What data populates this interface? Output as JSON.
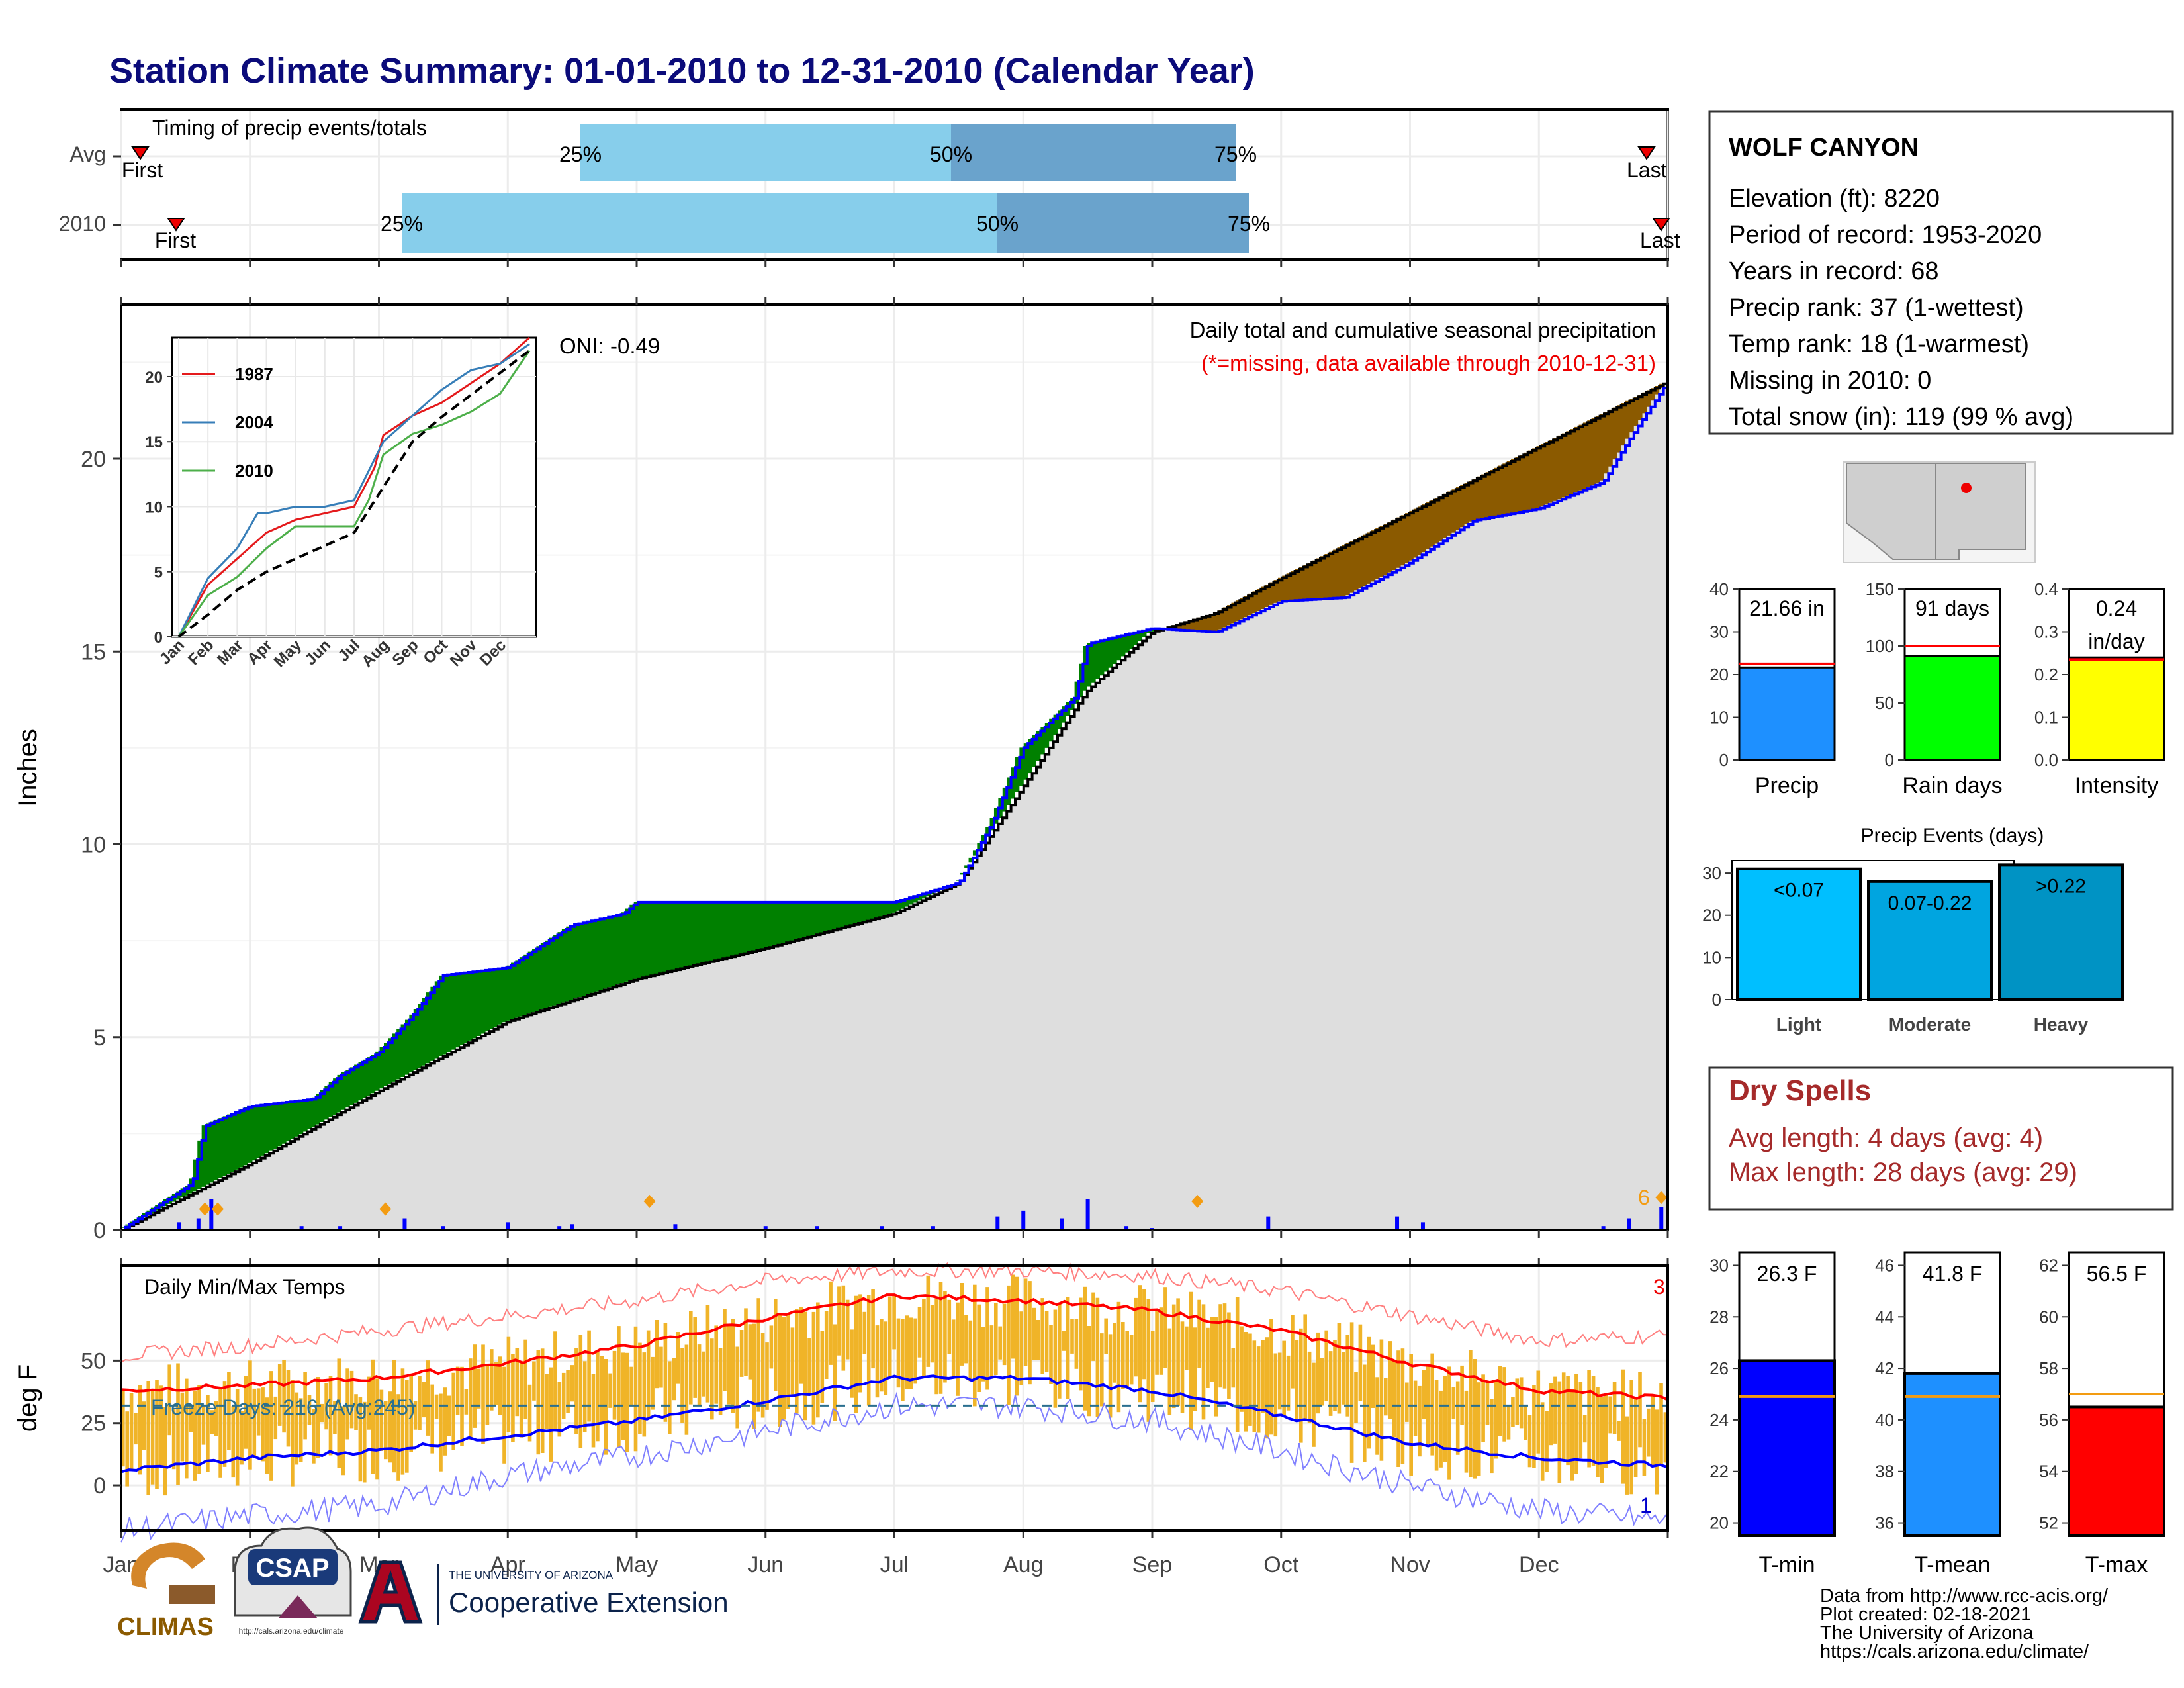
{
  "title": "Station Climate Summary: 01-01-2010 to 12-31-2010 (Calendar Year)",
  "colors": {
    "title": "#0b0b7a",
    "green_fill": "#008000",
    "brown_fill": "#8b5a00",
    "avg_fill": "#dedede",
    "blue_line": "#0000ff",
    "light_blue": "#87ceeb",
    "mid_blue": "#6aa3cc",
    "tmax": "#ff0000",
    "tmin": "#0000ff",
    "bars": "#f0b428",
    "dry_spell_text": "#a52a2a"
  },
  "timing": {
    "label": "Timing of precip events/totals",
    "rows": [
      "Avg",
      "2010"
    ],
    "avg": {
      "first_label": "First",
      "last_label": "Last",
      "p25": "25%",
      "p50": "50%",
      "p75": "75%"
    },
    "y2010": {
      "first_label": "First",
      "last_label": "Last",
      "p25": "25%",
      "p50": "50%",
      "p75": "75%"
    }
  },
  "precip_panel": {
    "ylabel": "Inches",
    "oni": "ONI: -0.49",
    "caption": "Daily total and cumulative seasonal precipitation",
    "missing_note": "(*=missing, data available through 2010-12-31)",
    "corner_count": "6",
    "yticks": [
      "0",
      "5",
      "10",
      "15",
      "20"
    ]
  },
  "inset": {
    "series": [
      {
        "name": "1987",
        "color": "#e41a1c"
      },
      {
        "name": "2004",
        "color": "#377eb8"
      },
      {
        "name": "2010",
        "color": "#4daf4a"
      }
    ],
    "yticks": [
      "0",
      "5",
      "10",
      "15",
      "20"
    ],
    "xticks": [
      "Jan",
      "Feb",
      "Mar",
      "Apr",
      "May",
      "Jun",
      "Jul",
      "Aug",
      "Sep",
      "Oct",
      "Nov",
      "Dec"
    ]
  },
  "temp_panel": {
    "ylabel": "deg F",
    "label": "Daily Min/Max Temps",
    "freeze": "Freeze Days: 216 (Avg:245)",
    "max_count": "3",
    "min_count": "1",
    "yticks": [
      "0",
      "25",
      "50"
    ]
  },
  "months": [
    "Jan",
    "Feb",
    "Mar",
    "Apr",
    "May",
    "Jun",
    "Jul",
    "Aug",
    "Sep",
    "Oct",
    "Nov",
    "Dec"
  ],
  "station": {
    "name": "WOLF CANYON",
    "lines": [
      "Elevation (ft): 8220",
      "Period of record: 1953-2020",
      "Years in record: 68",
      "Precip rank: 37 (1-wettest)",
      "Temp rank: 18 (1-warmest)",
      "Missing in 2010: 0",
      "Total snow (in): 119 (99 % avg)"
    ]
  },
  "summary_bars": [
    {
      "label": "Precip",
      "value_text": "21.66 in",
      "color": "#1e90ff",
      "yticks": [
        "0",
        "10",
        "20",
        "30",
        "40"
      ]
    },
    {
      "label": "Rain days",
      "value_text": "91 days",
      "color": "#00ff00",
      "yticks": [
        "0",
        "50",
        "100",
        "150"
      ]
    },
    {
      "label": "Intensity",
      "value_text": "0.24",
      "value_text2": "in/day",
      "color": "#ffff00",
      "yticks": [
        "0.0",
        "0.1",
        "0.2",
        "0.3",
        "0.4"
      ]
    }
  ],
  "precip_events": {
    "title": "Precip Events (days)",
    "yticks": [
      "0",
      "10",
      "20",
      "30"
    ],
    "bars": [
      {
        "label": "Light",
        "range": "<0.07",
        "color": "#00bfff"
      },
      {
        "label": "Moderate",
        "range": "0.07-0.22",
        "color": "#00a5e0"
      },
      {
        "label": "Heavy",
        "range": ">0.22",
        "color": "#0093c4"
      }
    ]
  },
  "dry_spells": {
    "title": "Dry Spells",
    "avg": "Avg length: 4 days (avg: 4)",
    "max": "Max length: 28 days (avg: 29)"
  },
  "temp_bars": [
    {
      "label": "T-min",
      "value_text": "26.3 F",
      "color": "#0000ff",
      "yticks": [
        "20",
        "22",
        "24",
        "26",
        "28",
        "30"
      ]
    },
    {
      "label": "T-mean",
      "value_text": "41.8 F",
      "color": "#1e90ff",
      "yticks": [
        "36",
        "38",
        "40",
        "42",
        "44",
        "46"
      ]
    },
    {
      "label": "T-max",
      "value_text": "56.5 F",
      "color": "#ff0000",
      "yticks": [
        "52",
        "54",
        "56",
        "58",
        "60",
        "62"
      ]
    }
  ],
  "logos": {
    "climas": "CLIMAS",
    "csap": "CSAP",
    "csap_url": "http://cals.arizona.edu/climate",
    "ua_small": "THE UNIVERSITY OF ARIZONA",
    "ua_big": "Cooperative Extension"
  },
  "credits": [
    "Data from http://www.rcc-acis.org/",
    "Plot created: 02-18-2021",
    "The University of Arizona",
    "https://cals.arizona.edu/climate/"
  ],
  "chart_data": [
    {
      "type": "area",
      "title": "Daily total and cumulative seasonal precipitation",
      "ylabel": "Inches",
      "ylim": [
        0,
        24
      ],
      "x_unit": "month of 2010",
      "cumulative_2010": [
        [
          0,
          0
        ],
        [
          0.55,
          1.2
        ],
        [
          0.65,
          2.7
        ],
        [
          1.0,
          3.2
        ],
        [
          1.5,
          3.4
        ],
        [
          1.7,
          4.0
        ],
        [
          2.0,
          4.6
        ],
        [
          2.25,
          5.5
        ],
        [
          2.5,
          6.6
        ],
        [
          3.0,
          6.8
        ],
        [
          3.5,
          7.9
        ],
        [
          3.9,
          8.2
        ],
        [
          4.0,
          8.5
        ],
        [
          5.0,
          8.5
        ],
        [
          6.0,
          8.5
        ],
        [
          6.5,
          9.0
        ],
        [
          6.75,
          10.5
        ],
        [
          7.0,
          12.5
        ],
        [
          7.4,
          13.8
        ],
        [
          7.5,
          15.2
        ],
        [
          8.0,
          15.6
        ],
        [
          8.5,
          15.5
        ],
        [
          9.0,
          16.3
        ],
        [
          9.5,
          16.4
        ],
        [
          10.0,
          17.3
        ],
        [
          10.5,
          18.4
        ],
        [
          11.0,
          18.7
        ],
        [
          11.5,
          19.4
        ],
        [
          11.7,
          20.5
        ],
        [
          12.0,
          22.0
        ]
      ],
      "cumulative_avg": [
        [
          0,
          0
        ],
        [
          1,
          1.7
        ],
        [
          2,
          3.6
        ],
        [
          3,
          5.4
        ],
        [
          4,
          6.5
        ],
        [
          5,
          7.3
        ],
        [
          6,
          8.2
        ],
        [
          6.5,
          9.0
        ],
        [
          7,
          11.5
        ],
        [
          7.5,
          14.0
        ],
        [
          8,
          15.5
        ],
        [
          8.5,
          16.0
        ],
        [
          9,
          16.9
        ],
        [
          10,
          18.6
        ],
        [
          11,
          20.3
        ],
        [
          12,
          22.0
        ]
      ],
      "daily_2010": [
        [
          0.45,
          0.2
        ],
        [
          0.6,
          0.3
        ],
        [
          0.7,
          0.8
        ],
        [
          1.4,
          0.1
        ],
        [
          1.7,
          0.1
        ],
        [
          2.2,
          0.3
        ],
        [
          2.5,
          0.1
        ],
        [
          3.0,
          0.2
        ],
        [
          3.4,
          0.1
        ],
        [
          3.5,
          0.15
        ],
        [
          4.3,
          0.15
        ],
        [
          5.0,
          0.1
        ],
        [
          5.4,
          0.1
        ],
        [
          5.9,
          0.1
        ],
        [
          6.3,
          0.1
        ],
        [
          6.8,
          0.35
        ],
        [
          7.0,
          0.5
        ],
        [
          7.3,
          0.3
        ],
        [
          7.5,
          0.8
        ],
        [
          7.8,
          0.1
        ],
        [
          8.0,
          0.05
        ],
        [
          8.9,
          0.35
        ],
        [
          9.9,
          0.35
        ],
        [
          10.1,
          0.2
        ],
        [
          11.5,
          0.1
        ],
        [
          11.7,
          0.3
        ],
        [
          11.95,
          0.6
        ]
      ]
    },
    {
      "type": "line",
      "title": "",
      "x_unit": "month",
      "ylim": [
        0,
        23
      ],
      "series": [
        {
          "name": "1987",
          "values": [
            [
              0,
              0
            ],
            [
              1,
              4
            ],
            [
              2,
              6
            ],
            [
              3,
              8
            ],
            [
              4,
              9
            ],
            [
              5,
              9.5
            ],
            [
              6,
              10
            ],
            [
              6.7,
              13
            ],
            [
              7,
              15.5
            ],
            [
              8,
              17
            ],
            [
              9,
              18
            ],
            [
              10,
              19.5
            ],
            [
              11,
              21
            ],
            [
              12,
              23
            ]
          ]
        },
        {
          "name": "2004",
          "values": [
            [
              0,
              0
            ],
            [
              1,
              4.5
            ],
            [
              2,
              6.8
            ],
            [
              2.7,
              9.5
            ],
            [
              3,
              9.5
            ],
            [
              4,
              10
            ],
            [
              5,
              10
            ],
            [
              6,
              10.5
            ],
            [
              7,
              15
            ],
            [
              8,
              17
            ],
            [
              9,
              19
            ],
            [
              10,
              20.5
            ],
            [
              11,
              21
            ],
            [
              12,
              22.5
            ]
          ]
        },
        {
          "name": "2010",
          "values": [
            [
              0,
              0
            ],
            [
              1,
              3.2
            ],
            [
              2,
              4.6
            ],
            [
              3,
              6.8
            ],
            [
              4,
              8.5
            ],
            [
              5,
              8.5
            ],
            [
              6,
              8.5
            ],
            [
              6.5,
              10.5
            ],
            [
              7,
              14
            ],
            [
              8,
              15.6
            ],
            [
              9,
              16.3
            ],
            [
              10,
              17.3
            ],
            [
              11,
              18.7
            ],
            [
              12,
              22
            ]
          ]
        },
        {
          "name": "average",
          "values": [
            [
              0,
              0
            ],
            [
              1,
              1.7
            ],
            [
              2,
              3.6
            ],
            [
              3,
              5.0
            ],
            [
              4,
              6.0
            ],
            [
              5,
              7.0
            ],
            [
              6,
              8.0
            ],
            [
              7,
              11.5
            ],
            [
              8,
              15
            ],
            [
              9,
              16.9
            ],
            [
              10,
              18.6
            ],
            [
              11,
              20.3
            ],
            [
              12,
              22
            ]
          ]
        }
      ]
    },
    {
      "type": "line",
      "title": "Daily Min/Max Temps",
      "ylabel": "deg F",
      "ylim": [
        -18,
        88
      ],
      "series": [
        {
          "name": "avg max",
          "values": [
            [
              0,
              38
            ],
            [
              1,
              40
            ],
            [
              2,
              43
            ],
            [
              3,
              49
            ],
            [
              4,
              56
            ],
            [
              5,
              67
            ],
            [
              6,
              76
            ],
            [
              7,
              74
            ],
            [
              8,
              70
            ],
            [
              9,
              62
            ],
            [
              10,
              49
            ],
            [
              11,
              38
            ],
            [
              12,
              35
            ]
          ]
        },
        {
          "name": "avg min",
          "values": [
            [
              0,
              6
            ],
            [
              1,
              11
            ],
            [
              2,
              14
            ],
            [
              3,
              20
            ],
            [
              4,
              26
            ],
            [
              5,
              34
            ],
            [
              6,
              43
            ],
            [
              7,
              43
            ],
            [
              8,
              38
            ],
            [
              9,
              28
            ],
            [
              10,
              17
            ],
            [
              11,
              11
            ],
            [
              12,
              8
            ]
          ]
        },
        {
          "name": "record max",
          "values": [
            [
              0,
              52
            ],
            [
              1,
              56
            ],
            [
              2,
              62
            ],
            [
              3,
              68
            ],
            [
              4,
              74
            ],
            [
              5,
              82
            ],
            [
              6,
              86
            ],
            [
              7,
              86
            ],
            [
              8,
              84
            ],
            [
              9,
              78
            ],
            [
              10,
              68
            ],
            [
              11,
              58
            ],
            [
              12,
              60
            ]
          ]
        },
        {
          "name": "record min",
          "values": [
            [
              0,
              -18
            ],
            [
              1,
              -12
            ],
            [
              2,
              -8
            ],
            [
              3,
              4
            ],
            [
              4,
              12
            ],
            [
              5,
              22
            ],
            [
              6,
              32
            ],
            [
              7,
              32
            ],
            [
              8,
              26
            ],
            [
              9,
              14
            ],
            [
              10,
              0
            ],
            [
              11,
              -10
            ],
            [
              12,
              -14
            ]
          ]
        }
      ],
      "freeze_threshold": 32
    },
    {
      "type": "bar",
      "categories": [
        "Precip",
        "Rain days",
        "Intensity"
      ],
      "values": [
        21.66,
        91,
        0.24
      ],
      "averages": [
        22.5,
        100,
        0.235
      ],
      "ylim": [
        [
          0,
          40
        ],
        [
          0,
          150
        ],
        [
          0,
          0.4
        ]
      ]
    },
    {
      "type": "bar",
      "title": "Precip Events (days)",
      "categories": [
        "Light",
        "Moderate",
        "Heavy"
      ],
      "values": [
        31,
        28,
        32
      ],
      "ylim": [
        0,
        33
      ]
    },
    {
      "type": "bar",
      "categories": [
        "T-min",
        "T-mean",
        "T-max"
      ],
      "values": [
        26.3,
        41.8,
        56.5
      ],
      "averages": [
        24.9,
        40.9,
        57.0
      ],
      "ylim": [
        [
          19.5,
          30.5
        ],
        [
          35.5,
          46.5
        ],
        [
          51.5,
          62.5
        ]
      ]
    }
  ]
}
